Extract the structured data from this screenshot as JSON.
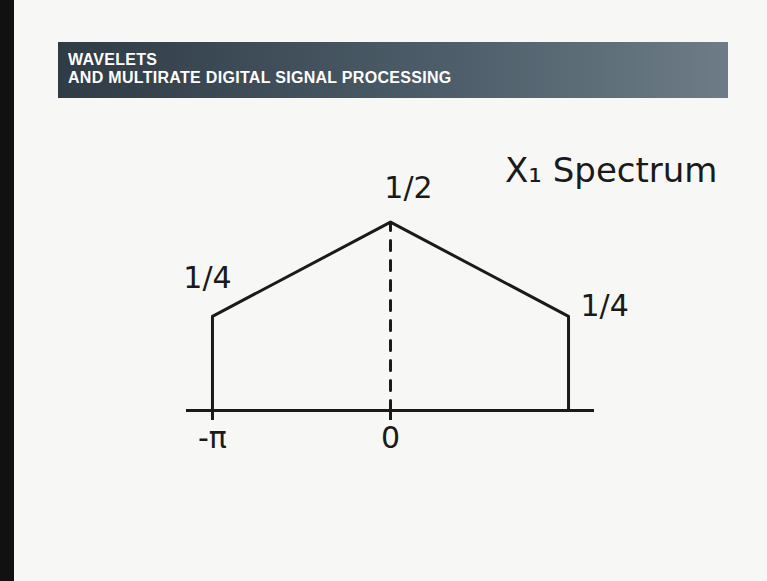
{
  "header": {
    "lines": [
      "WAVELETS",
      "AND MULTIRATE DIGITAL SIGNAL PROCESSING"
    ]
  },
  "chart_data": {
    "type": "line",
    "title": "X₁ Spectrum",
    "series": [
      {
        "x": [
          -3.1416,
          -3.1416,
          0,
          3.1416,
          3.1416
        ],
        "values": [
          0,
          0.25,
          0.5,
          0.25,
          0
        ],
        "value_labels": [
          null,
          "1/4",
          "1/2",
          "1/4",
          null
        ],
        "color": "#1a1a1a",
        "line_style": "solid"
      },
      {
        "x": [
          0,
          0
        ],
        "values": [
          0,
          0.5
        ],
        "color": "#1a1a1a",
        "line_style": "dashed"
      }
    ],
    "xlim": [
      -3.6,
      3.6
    ],
    "xticks": [
      {
        "value": -3.1416,
        "label": "-π"
      },
      0
    ],
    "ylim": [
      0,
      0.6
    ],
    "tick_labels": "x",
    "data_labels": true,
    "grid": false
  }
}
